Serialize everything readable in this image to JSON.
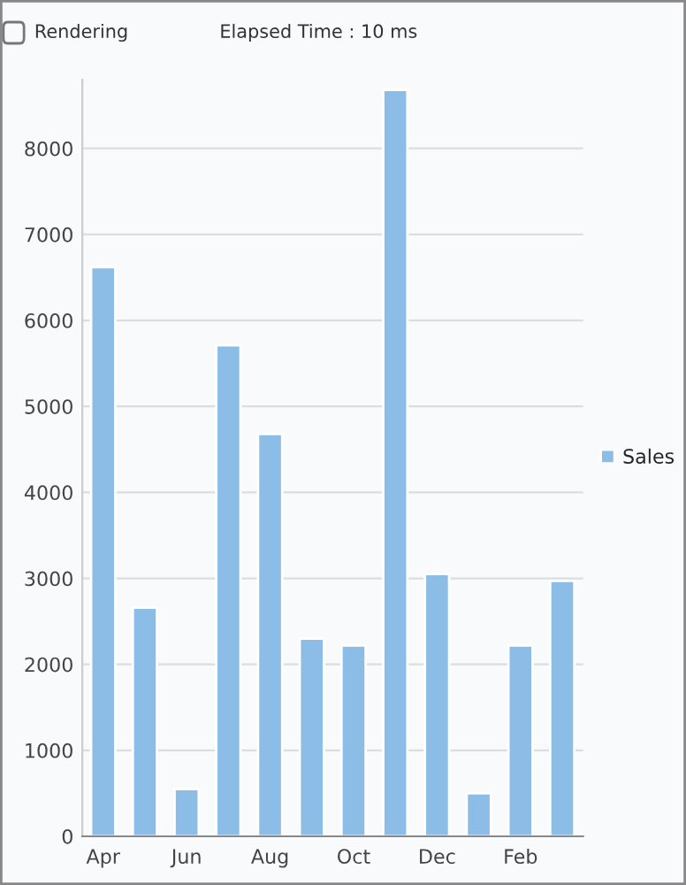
{
  "chart_data": {
    "type": "bar",
    "categories": [
      "Apr",
      null,
      "Jun",
      null,
      "Aug",
      null,
      "Oct",
      null,
      "Dec",
      null,
      "Feb",
      null
    ],
    "series": [
      {
        "name": "Sales",
        "color": "#8bbde6",
        "values": [
          6620,
          2660,
          550,
          5710,
          4680,
          2300,
          2220,
          8680,
          3050,
          500,
          2220,
          2970
        ]
      }
    ],
    "ylim": [
      0,
      8800
    ],
    "yticks": [
      0,
      1000,
      2000,
      3000,
      4000,
      5000,
      6000,
      7000,
      8000
    ],
    "grid": "y",
    "legend": "right",
    "annotations": [
      "Rendering",
      "Elapsed Time : 10 ms"
    ]
  }
}
